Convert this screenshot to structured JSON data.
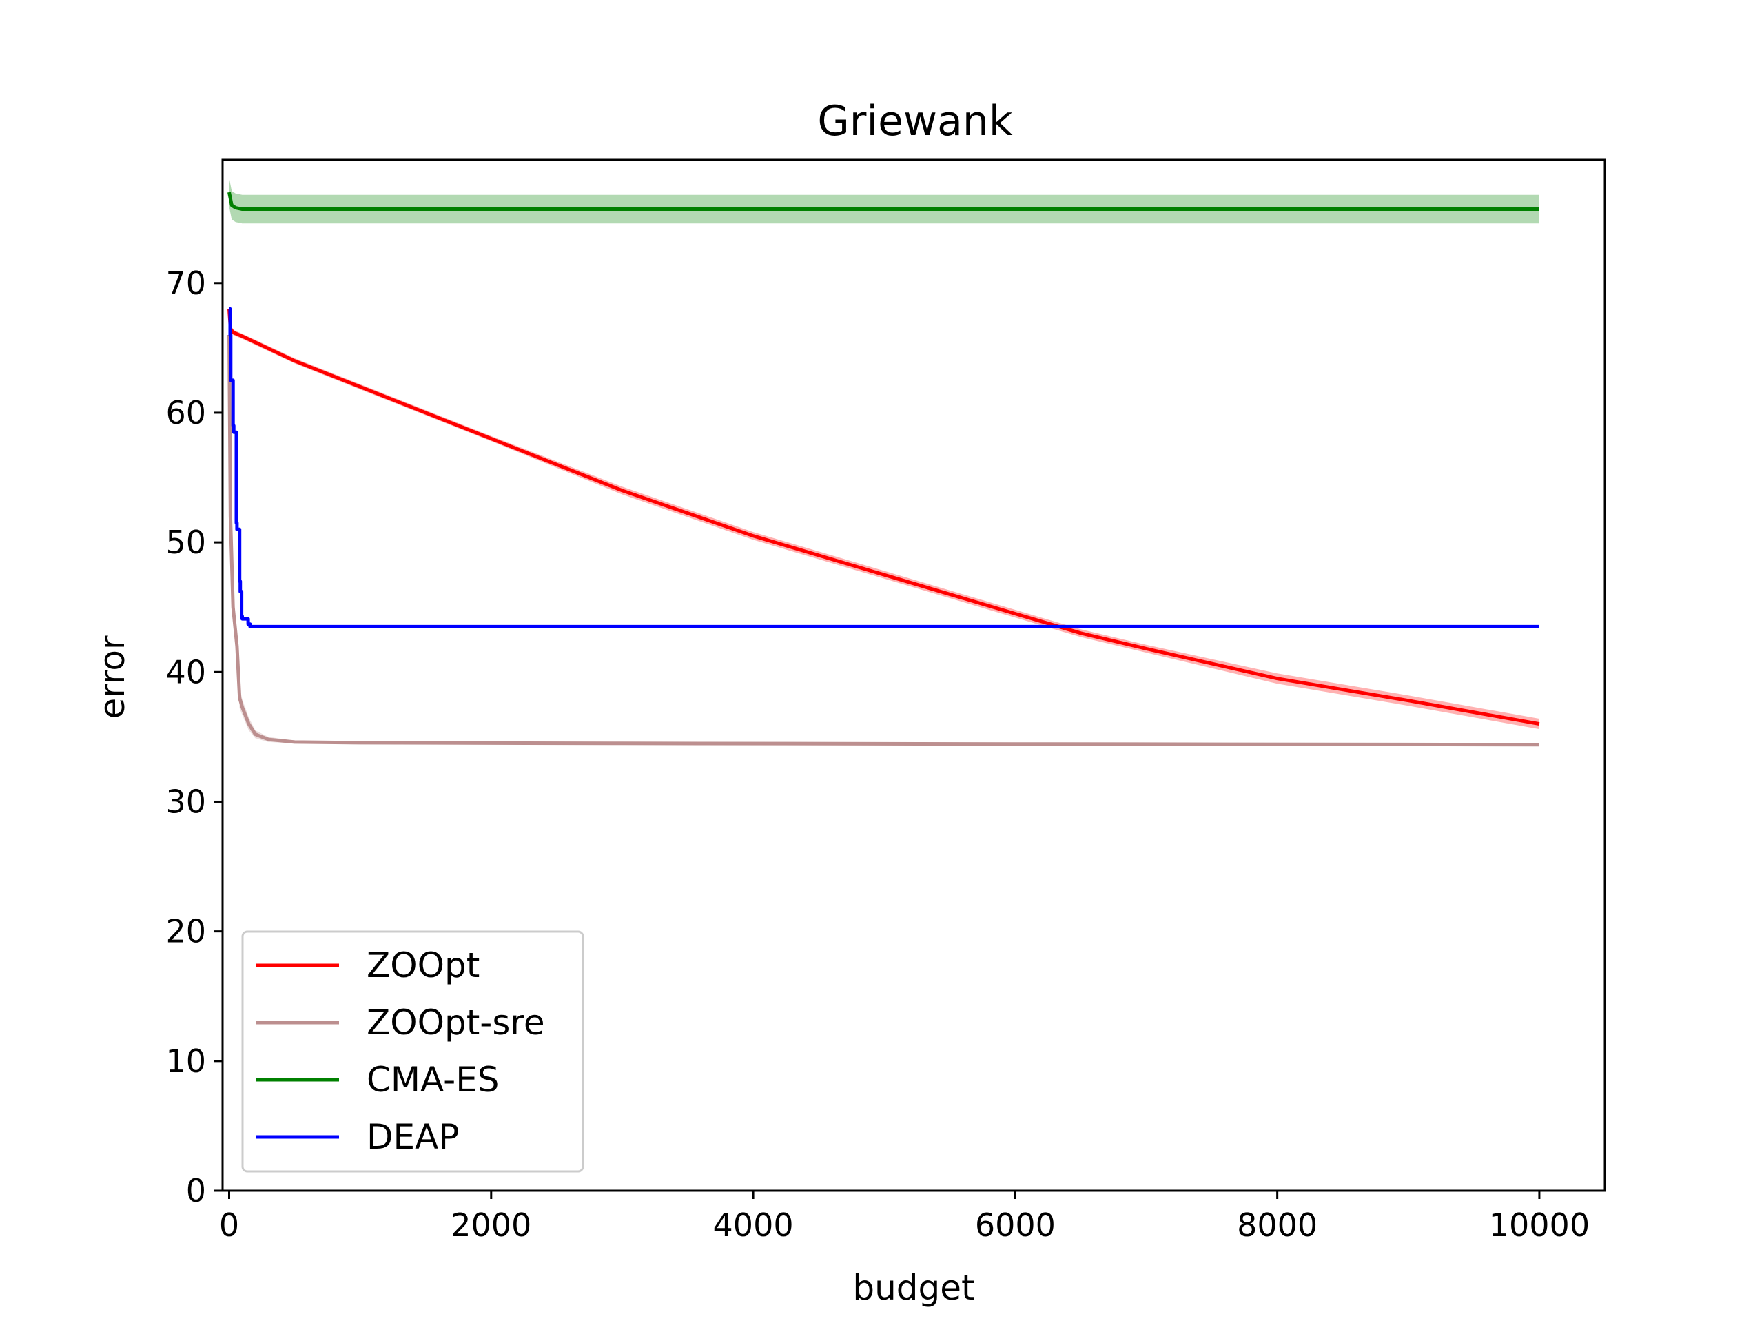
{
  "chart_data": {
    "type": "line",
    "title": "Griewank",
    "xlabel": "budget",
    "ylabel": "error",
    "xlim": [
      -50,
      10500
    ],
    "ylim": [
      0,
      79.5
    ],
    "xticks": [
      0,
      2000,
      4000,
      6000,
      8000,
      10000
    ],
    "xtick_labels": [
      "0",
      "2000",
      "4000",
      "6000",
      "8000",
      "10000"
    ],
    "yticks": [
      0,
      10,
      20,
      30,
      40,
      50,
      60,
      70
    ],
    "ytick_labels": [
      "0",
      "10",
      "20",
      "30",
      "40",
      "50",
      "60",
      "70"
    ],
    "grid": false,
    "legend_position": "lower-left",
    "series": [
      {
        "name": "ZOOpt",
        "color": "#ff0000",
        "band_color": "#ff0000",
        "x": [
          0,
          10,
          30,
          100,
          500,
          1000,
          2000,
          3000,
          4000,
          5000,
          6000,
          6500,
          7000,
          8000,
          9000,
          10000
        ],
        "y": [
          68.0,
          66.5,
          66.2,
          65.9,
          64.0,
          62.0,
          58.0,
          54.0,
          50.5,
          47.5,
          44.5,
          43.0,
          41.8,
          39.5,
          37.8,
          36.0
        ],
        "band": [
          0.2,
          0.2,
          0.2,
          0.2,
          0.2,
          0.2,
          0.2,
          0.3,
          0.3,
          0.3,
          0.3,
          0.3,
          0.3,
          0.4,
          0.4,
          0.4
        ]
      },
      {
        "name": "ZOOpt-sre",
        "color": "#bc8f8f",
        "band_color": "#bc8f8f",
        "x": [
          0,
          10,
          30,
          60,
          80,
          100,
          150,
          200,
          300,
          500,
          1000,
          3000,
          6000,
          10000
        ],
        "y": [
          66.0,
          52.0,
          45.0,
          42.0,
          38.0,
          37.3,
          36.0,
          35.2,
          34.8,
          34.6,
          34.55,
          34.5,
          34.45,
          34.4
        ],
        "band": [
          1.0,
          1.0,
          1.0,
          1.0,
          0.8,
          0.6,
          0.5,
          0.3,
          0.2,
          0.1,
          0.1,
          0.1,
          0.1,
          0.1
        ]
      },
      {
        "name": "CMA-ES",
        "color": "#008000",
        "band_color": "#008000",
        "x": [
          0,
          20,
          50,
          100,
          10000
        ],
        "y": [
          77.0,
          76.0,
          75.8,
          75.7,
          75.7
        ],
        "band": [
          1.1,
          1.1,
          1.1,
          1.1,
          1.1
        ]
      },
      {
        "name": "DEAP",
        "color": "#0000ff",
        "x": [
          0,
          8,
          12,
          30,
          35,
          55,
          60,
          80,
          85,
          95,
          100,
          140,
          145,
          160,
          10000
        ],
        "y": [
          68.0,
          66.0,
          62.5,
          59.0,
          58.5,
          51.5,
          51.0,
          47.0,
          46.2,
          44.3,
          44.1,
          44.1,
          43.7,
          43.5,
          43.5
        ],
        "steps": true
      }
    ]
  }
}
